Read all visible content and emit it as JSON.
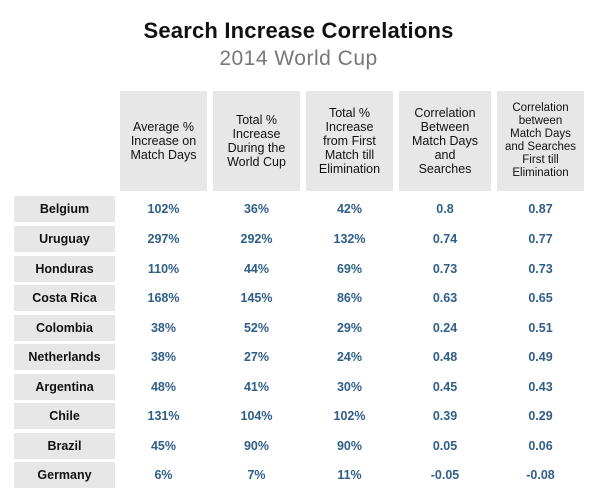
{
  "title": "Search Increase Correlations",
  "subtitle": "2014 World Cup",
  "headers": [
    [
      "Average %",
      "Increase on",
      "Match Days"
    ],
    [
      "Total %",
      "Increase",
      "During the",
      "World Cup"
    ],
    [
      "Total %",
      "Increase",
      "from First",
      "Match till",
      "Elimination"
    ],
    [
      "Correlation",
      "Between",
      "Match Days",
      "and",
      "Searches"
    ],
    [
      "Correlation",
      "between",
      "Match Days",
      "and Searches",
      "First till",
      "Elimination"
    ]
  ],
  "rows": [
    {
      "country": "Belgium",
      "values": [
        "102%",
        "36%",
        "42%",
        "0.8",
        "0.87"
      ]
    },
    {
      "country": "Uruguay",
      "values": [
        "297%",
        "292%",
        "132%",
        "0.74",
        "0.77"
      ]
    },
    {
      "country": "Honduras",
      "values": [
        "110%",
        "44%",
        "69%",
        "0.73",
        "0.73"
      ]
    },
    {
      "country": "Costa Rica",
      "values": [
        "168%",
        "145%",
        "86%",
        "0.63",
        "0.65"
      ]
    },
    {
      "country": "Colombia",
      "values": [
        "38%",
        "52%",
        "29%",
        "0.24",
        "0.51"
      ]
    },
    {
      "country": "Netherlands",
      "values": [
        "38%",
        "27%",
        "24%",
        "0.48",
        "0.49"
      ]
    },
    {
      "country": "Argentina",
      "values": [
        "48%",
        "41%",
        "30%",
        "0.45",
        "0.43"
      ]
    },
    {
      "country": "Chile",
      "values": [
        "131%",
        "104%",
        "102%",
        "0.39",
        "0.29"
      ]
    },
    {
      "country": "Brazil",
      "values": [
        "45%",
        "90%",
        "90%",
        "0.05",
        "0.06"
      ]
    },
    {
      "country": "Germany",
      "values": [
        "6%",
        "7%",
        "11%",
        "-0.05",
        "-0.08"
      ]
    }
  ],
  "colors": {
    "header_bg": "#e7e7e7",
    "value_text": "#2f5e87",
    "subtitle_text": "#777777"
  }
}
